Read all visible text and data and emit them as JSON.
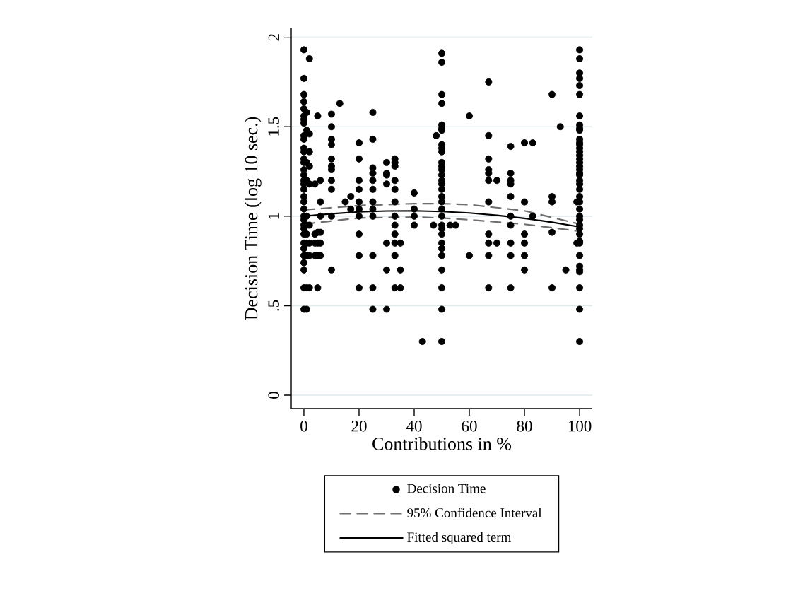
{
  "chart_data": {
    "type": "scatter",
    "xlabel": "Contributions in %",
    "ylabel": "Decision Time (log 10 sec.)",
    "xlim": [
      -4.6,
      104.6
    ],
    "ylim": [
      -0.075,
      2.05
    ],
    "xticks": [
      0,
      20,
      40,
      60,
      80,
      100
    ],
    "yticks": [
      0,
      {
        "value": 0.5,
        "label": ".5"
      },
      1,
      1.5,
      2
    ],
    "grid": "y",
    "legend": "bottom",
    "series": [
      {
        "name": "Decision Time",
        "color": "#000000",
        "marker": "circle",
        "x": [
          0,
          0,
          0,
          0,
          0,
          0,
          0,
          0,
          0,
          0,
          0,
          0,
          0,
          0,
          0,
          0,
          0,
          0,
          0,
          0,
          0,
          0,
          0,
          0,
          0,
          0,
          0,
          0,
          0,
          0,
          0,
          0,
          0,
          0,
          1,
          1,
          1,
          1,
          1,
          1,
          1,
          1,
          1,
          1,
          1,
          2,
          2,
          2,
          2,
          2,
          2,
          2,
          2,
          2,
          4,
          4,
          4,
          4,
          5,
          5,
          5,
          5,
          5,
          6,
          6,
          6,
          6,
          6,
          6,
          10,
          10,
          10,
          10,
          10,
          10,
          10,
          10,
          10,
          10,
          10,
          13,
          15,
          17,
          17,
          20,
          20,
          20,
          20,
          20,
          20,
          20,
          20,
          20,
          20,
          25,
          25,
          25,
          25,
          25,
          25,
          25,
          25,
          25,
          25,
          25,
          25,
          30,
          30,
          30,
          30,
          30,
          30,
          30,
          33,
          33,
          33,
          33,
          33,
          33,
          33,
          33,
          33,
          33,
          33,
          33,
          35,
          35,
          35,
          40,
          40,
          40,
          40,
          43,
          47,
          48,
          50,
          50,
          50,
          50,
          50,
          50,
          50,
          50,
          50,
          50,
          50,
          50,
          50,
          50,
          50,
          50,
          50,
          50,
          50,
          50,
          50,
          50,
          50,
          50,
          50,
          50,
          50,
          50,
          50,
          50,
          50,
          53,
          55,
          60,
          60,
          67,
          67,
          67,
          67,
          67,
          67,
          67,
          67,
          67,
          67,
          67,
          70,
          70,
          75,
          75,
          75,
          75,
          75,
          75,
          75,
          75,
          75,
          75,
          80,
          80,
          80,
          80,
          80,
          80,
          83,
          83,
          90,
          90,
          90,
          90,
          90,
          93,
          95,
          99,
          99,
          100,
          100,
          100,
          100,
          100,
          100,
          100,
          100,
          100,
          100,
          100,
          100,
          100,
          100,
          100,
          100,
          100,
          100,
          100,
          100,
          100,
          100,
          100,
          100,
          100,
          100,
          100,
          100,
          100,
          100,
          100,
          100,
          100,
          100,
          100,
          100,
          100,
          100,
          100,
          100,
          100,
          100
        ],
        "values": [
          1.93,
          1.77,
          1.68,
          1.64,
          1.6,
          1.56,
          1.54,
          1.52,
          1.45,
          1.43,
          1.38,
          1.36,
          1.32,
          1.3,
          1.26,
          1.23,
          1.2,
          1.18,
          1.15,
          1.11,
          1.08,
          1.04,
          1.0,
          0.98,
          0.95,
          0.93,
          0.9,
          0.85,
          0.82,
          0.78,
          0.74,
          0.7,
          0.6,
          0.48,
          1.58,
          1.48,
          1.3,
          1.2,
          1.0,
          0.95,
          0.9,
          0.85,
          0.78,
          0.6,
          0.48,
          1.88,
          1.46,
          1.36,
          1.28,
          1.18,
          0.95,
          0.85,
          0.78,
          0.6,
          1.18,
          0.9,
          0.85,
          0.78,
          1.56,
          0.91,
          0.85,
          0.78,
          0.6,
          1.2,
          1.08,
          1.0,
          0.91,
          0.85,
          0.78,
          1.57,
          1.5,
          1.43,
          1.4,
          1.32,
          1.28,
          1.26,
          1.2,
          1.15,
          1.0,
          0.7,
          1.63,
          1.08,
          1.11,
          1.04,
          1.41,
          1.32,
          1.2,
          1.15,
          1.08,
          1.04,
          1.0,
          0.9,
          0.78,
          0.6,
          1.58,
          1.43,
          1.27,
          1.24,
          1.2,
          1.15,
          1.08,
          1.04,
          1.0,
          0.78,
          0.6,
          0.48,
          1.3,
          1.24,
          1.23,
          1.18,
          0.85,
          0.7,
          0.48,
          1.32,
          1.3,
          1.28,
          1.2,
          1.15,
          1.08,
          1.0,
          0.95,
          0.9,
          0.85,
          0.78,
          0.6,
          0.85,
          0.7,
          0.6,
          1.13,
          1.04,
          1.0,
          0.95,
          0.3,
          0.95,
          1.45,
          1.91,
          1.86,
          1.68,
          1.63,
          1.51,
          1.49,
          1.48,
          1.4,
          1.38,
          1.36,
          1.3,
          1.28,
          1.26,
          1.23,
          1.2,
          1.18,
          1.15,
          1.11,
          1.08,
          1.04,
          1.0,
          0.95,
          0.93,
          0.9,
          0.85,
          0.82,
          0.78,
          0.7,
          0.6,
          0.48,
          0.3,
          0.95,
          0.95,
          1.56,
          0.78,
          1.75,
          1.45,
          1.32,
          1.26,
          1.24,
          1.2,
          1.08,
          0.9,
          0.85,
          0.78,
          0.6,
          1.2,
          0.85,
          1.39,
          1.24,
          1.2,
          1.18,
          1.11,
          1.0,
          0.95,
          0.85,
          0.78,
          0.6,
          1.41,
          1.08,
          0.9,
          0.85,
          0.78,
          0.7,
          1.41,
          1.0,
          1.68,
          1.11,
          1.08,
          0.91,
          0.6,
          1.5,
          0.7,
          1.08,
          0.85,
          1.93,
          1.88,
          1.8,
          1.77,
          1.73,
          1.68,
          1.56,
          1.51,
          1.49,
          1.48,
          1.43,
          1.41,
          1.4,
          1.38,
          1.36,
          1.34,
          1.32,
          1.3,
          1.28,
          1.26,
          1.24,
          1.23,
          1.2,
          1.18,
          1.15,
          1.11,
          1.08,
          1.04,
          1.0,
          0.98,
          0.95,
          0.93,
          0.9,
          0.86,
          0.85,
          0.78,
          0.72,
          0.7,
          0.69,
          0.6,
          0.48,
          0.3
        ]
      },
      {
        "name": "95% Confidence Interval",
        "type": "line",
        "color": "#6e6e6e",
        "line_style": "dashed",
        "marker": "none",
        "x": [
          0,
          20,
          40,
          50,
          60,
          80,
          100
        ],
        "values": [
          1.035,
          1.06,
          1.07,
          1.07,
          1.065,
          1.03,
          0.956
        ]
      },
      {
        "type": "line",
        "color": "#6e6e6e",
        "line_style": "dashed",
        "marker": "none",
        "x": [
          0,
          20,
          40,
          50,
          60,
          80,
          100
        ],
        "values": [
          0.956,
          0.99,
          0.995,
          0.99,
          0.98,
          0.955,
          0.916
        ]
      },
      {
        "name": "Fitted squared term",
        "type": "line",
        "color": "#000000",
        "line_style": "solid",
        "marker": "none",
        "x": [
          0,
          10,
          20,
          30,
          40,
          50,
          60,
          70,
          80,
          90,
          100
        ],
        "values": [
          1.0,
          1.014,
          1.024,
          1.029,
          1.03,
          1.026,
          1.018,
          1.005,
          0.988,
          0.966,
          0.94
        ]
      }
    ]
  }
}
